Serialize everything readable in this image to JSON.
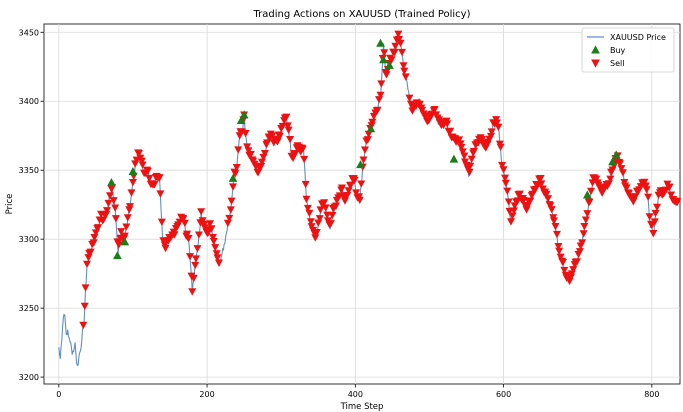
{
  "chart_data": {
    "type": "line",
    "title": "Trading Actions on XAUUSD (Trained Policy)",
    "xlabel": "Time Step",
    "ylabel": "Price",
    "xlim": [
      -20,
      838
    ],
    "ylim": [
      3195,
      3456
    ],
    "x_ticks": [
      0,
      200,
      400,
      600,
      800
    ],
    "y_ticks": [
      3200,
      3250,
      3300,
      3350,
      3400,
      3450
    ],
    "grid": true,
    "legend_position": "top-right",
    "colors": {
      "price": "#5f8fc4",
      "buy": "#1a7f1a",
      "sell": "#ee1111",
      "grid": "#d9d9d9"
    },
    "series": [
      {
        "name": "XAUUSD Price",
        "kind": "line",
        "anchors": [
          [
            0,
            3221
          ],
          [
            2,
            3213
          ],
          [
            4,
            3226
          ],
          [
            6,
            3244
          ],
          [
            8,
            3244
          ],
          [
            10,
            3230
          ],
          [
            12,
            3233
          ],
          [
            14,
            3228
          ],
          [
            16,
            3226
          ],
          [
            18,
            3215
          ],
          [
            20,
            3220
          ],
          [
            22,
            3224
          ],
          [
            24,
            3211
          ],
          [
            26,
            3207
          ],
          [
            28,
            3218
          ],
          [
            30,
            3220
          ],
          [
            32,
            3236
          ],
          [
            34,
            3239
          ],
          [
            36,
            3262
          ],
          [
            38,
            3280
          ],
          [
            40,
            3286
          ],
          [
            44,
            3292
          ],
          [
            48,
            3300
          ],
          [
            52,
            3306
          ],
          [
            56,
            3316
          ],
          [
            60,
            3314
          ],
          [
            64,
            3318
          ],
          [
            68,
            3329
          ],
          [
            72,
            3336
          ],
          [
            76,
            3322
          ],
          [
            80,
            3290
          ],
          [
            84,
            3303
          ],
          [
            88,
            3299
          ],
          [
            92,
            3310
          ],
          [
            96,
            3324
          ],
          [
            100,
            3340
          ],
          [
            104,
            3356
          ],
          [
            108,
            3362
          ],
          [
            112,
            3356
          ],
          [
            116,
            3345
          ],
          [
            120,
            3348
          ],
          [
            124,
            3340
          ],
          [
            128,
            3337
          ],
          [
            132,
            3344
          ],
          [
            136,
            3343
          ],
          [
            140,
            3300
          ],
          [
            144,
            3294
          ],
          [
            148,
            3298
          ],
          [
            152,
            3302
          ],
          [
            156,
            3303
          ],
          [
            160,
            3310
          ],
          [
            164,
            3314
          ],
          [
            168,
            3315
          ],
          [
            172,
            3303
          ],
          [
            176,
            3296
          ],
          [
            180,
            3262
          ],
          [
            184,
            3281
          ],
          [
            188,
            3296
          ],
          [
            192,
            3318
          ],
          [
            196,
            3310
          ],
          [
            200,
            3302
          ],
          [
            204,
            3310
          ],
          [
            208,
            3300
          ],
          [
            212,
            3292
          ],
          [
            216,
            3280
          ],
          [
            220,
            3290
          ],
          [
            224,
            3296
          ],
          [
            228,
            3310
          ],
          [
            232,
            3320
          ],
          [
            236,
            3345
          ],
          [
            240,
            3352
          ],
          [
            244,
            3374
          ],
          [
            248,
            3380
          ],
          [
            250,
            3388
          ],
          [
            254,
            3365
          ],
          [
            258,
            3360
          ],
          [
            262,
            3357
          ],
          [
            266,
            3352
          ],
          [
            270,
            3347
          ],
          [
            274,
            3356
          ],
          [
            278,
            3361
          ],
          [
            282,
            3372
          ],
          [
            286,
            3375
          ],
          [
            290,
            3371
          ],
          [
            294,
            3370
          ],
          [
            298,
            3374
          ],
          [
            302,
            3381
          ],
          [
            306,
            3389
          ],
          [
            310,
            3380
          ],
          [
            314,
            3360
          ],
          [
            318,
            3359
          ],
          [
            322,
            3366
          ],
          [
            326,
            3362
          ],
          [
            330,
            3366
          ],
          [
            334,
            3330
          ],
          [
            338,
            3316
          ],
          [
            342,
            3308
          ],
          [
            346,
            3299
          ],
          [
            350,
            3310
          ],
          [
            354,
            3322
          ],
          [
            358,
            3327
          ],
          [
            362,
            3316
          ],
          [
            366,
            3309
          ],
          [
            370,
            3320
          ],
          [
            374,
            3325
          ],
          [
            378,
            3331
          ],
          [
            382,
            3335
          ],
          [
            386,
            3328
          ],
          [
            390,
            3333
          ],
          [
            394,
            3340
          ],
          [
            398,
            3343
          ],
          [
            402,
            3331
          ],
          [
            406,
            3328
          ],
          [
            410,
            3352
          ],
          [
            414,
            3368
          ],
          [
            418,
            3375
          ],
          [
            422,
            3382
          ],
          [
            426,
            3390
          ],
          [
            430,
            3393
          ],
          [
            434,
            3404
          ],
          [
            436,
            3420
          ],
          [
            438,
            3440
          ],
          [
            440,
            3425
          ],
          [
            442,
            3418
          ],
          [
            446,
            3428
          ],
          [
            450,
            3432
          ],
          [
            454,
            3438
          ],
          [
            458,
            3446
          ],
          [
            462,
            3440
          ],
          [
            466,
            3420
          ],
          [
            470,
            3412
          ],
          [
            474,
            3400
          ],
          [
            478,
            3392
          ],
          [
            482,
            3396
          ],
          [
            486,
            3400
          ],
          [
            490,
            3393
          ],
          [
            494,
            3388
          ],
          [
            498,
            3386
          ],
          [
            502,
            3390
          ],
          [
            506,
            3393
          ],
          [
            510,
            3386
          ],
          [
            514,
            3384
          ],
          [
            518,
            3381
          ],
          [
            522,
            3387
          ],
          [
            526,
            3378
          ],
          [
            530,
            3374
          ],
          [
            534,
            3370
          ],
          [
            538,
            3372
          ],
          [
            542,
            3368
          ],
          [
            546,
            3360
          ],
          [
            550,
            3352
          ],
          [
            554,
            3346
          ],
          [
            558,
            3362
          ],
          [
            562,
            3366
          ],
          [
            566,
            3370
          ],
          [
            570,
            3374
          ],
          [
            574,
            3365
          ],
          [
            578,
            3367
          ],
          [
            582,
            3372
          ],
          [
            586,
            3382
          ],
          [
            590,
            3386
          ],
          [
            594,
            3376
          ],
          [
            598,
            3352
          ],
          [
            602,
            3344
          ],
          [
            606,
            3330
          ],
          [
            610,
            3311
          ],
          [
            614,
            3320
          ],
          [
            618,
            3327
          ],
          [
            622,
            3332
          ],
          [
            626,
            3327
          ],
          [
            630,
            3321
          ],
          [
            634,
            3326
          ],
          [
            638,
            3331
          ],
          [
            642,
            3336
          ],
          [
            646,
            3340
          ],
          [
            650,
            3342
          ],
          [
            654,
            3334
          ],
          [
            658,
            3330
          ],
          [
            662,
            3324
          ],
          [
            666,
            3317
          ],
          [
            670,
            3310
          ],
          [
            674,
            3293
          ],
          [
            678,
            3285
          ],
          [
            682,
            3276
          ],
          [
            686,
            3272
          ],
          [
            690,
            3268
          ],
          [
            694,
            3277
          ],
          [
            698,
            3283
          ],
          [
            702,
            3290
          ],
          [
            706,
            3298
          ],
          [
            710,
            3310
          ],
          [
            714,
            3322
          ],
          [
            718,
            3334
          ],
          [
            722,
            3346
          ],
          [
            726,
            3341
          ],
          [
            730,
            3337
          ],
          [
            734,
            3333
          ],
          [
            738,
            3338
          ],
          [
            742,
            3341
          ],
          [
            746,
            3348
          ],
          [
            750,
            3356
          ],
          [
            754,
            3358
          ],
          [
            758,
            3352
          ],
          [
            762,
            3344
          ],
          [
            766,
            3335
          ],
          [
            770,
            3330
          ],
          [
            774,
            3327
          ],
          [
            778,
            3332
          ],
          [
            782,
            3336
          ],
          [
            786,
            3340
          ],
          [
            790,
            3339
          ],
          [
            794,
            3335
          ],
          [
            798,
            3310
          ],
          [
            802,
            3305
          ],
          [
            806,
            3320
          ],
          [
            810,
            3334
          ],
          [
            814,
            3331
          ],
          [
            818,
            3336
          ],
          [
            822,
            3338
          ],
          [
            826,
            3332
          ],
          [
            830,
            3326
          ],
          [
            834,
            3326
          ]
        ]
      },
      {
        "name": "Buy",
        "kind": "markers",
        "marker": "triangle-up",
        "points": [
          [
            71,
            3341
          ],
          [
            79,
            3288
          ],
          [
            89,
            3298
          ],
          [
            100,
            3349
          ],
          [
            235,
            3344
          ],
          [
            246,
            3386
          ],
          [
            250,
            3390
          ],
          [
            407,
            3354
          ],
          [
            421,
            3380
          ],
          [
            434,
            3442
          ],
          [
            438,
            3430
          ],
          [
            446,
            3426
          ],
          [
            533,
            3358
          ],
          [
            713,
            3332
          ],
          [
            747,
            3356
          ],
          [
            752,
            3361
          ]
        ]
      },
      {
        "name": "Sell",
        "kind": "markers",
        "marker": "triangle-down",
        "count": 470
      }
    ]
  }
}
